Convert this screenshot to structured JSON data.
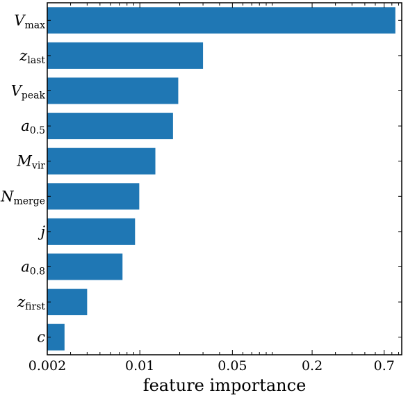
{
  "chart_data": {
    "type": "bar",
    "orientation": "horizontal",
    "xscale": "log",
    "xlim": [
      0.002,
      0.95
    ],
    "xticks": [
      0.002,
      0.01,
      0.05,
      0.2,
      0.7
    ],
    "xtick_labels": [
      "0.002",
      "0.01",
      "0.05",
      "0.2",
      "0.7"
    ],
    "xlabel": "feature importance",
    "bar_color": "#1f77b4",
    "categories": [
      {
        "base": "V",
        "sub": "max"
      },
      {
        "base": "z",
        "sub": "last"
      },
      {
        "base": "V",
        "sub": "peak"
      },
      {
        "base": "a",
        "sub": "0.5"
      },
      {
        "base": "M",
        "sub": "vir"
      },
      {
        "base": "N",
        "sub": "merge"
      },
      {
        "base": "j",
        "sub": ""
      },
      {
        "base": "a",
        "sub": "0.8"
      },
      {
        "base": "z",
        "sub": "first"
      },
      {
        "base": "c",
        "sub": ""
      }
    ],
    "values": [
      0.85,
      0.03,
      0.0195,
      0.0178,
      0.0131,
      0.0099,
      0.0092,
      0.0074,
      0.004,
      0.0027
    ]
  }
}
